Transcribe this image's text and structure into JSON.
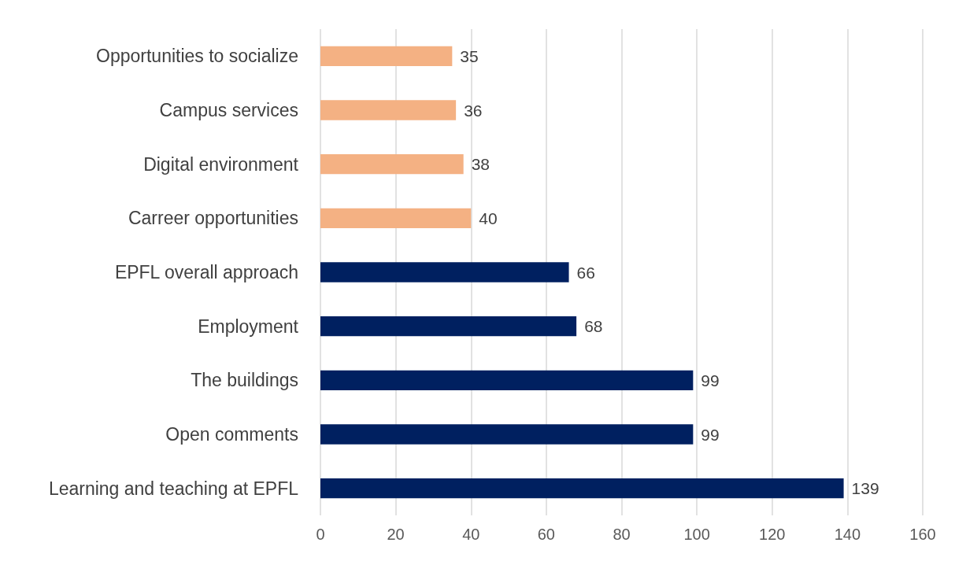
{
  "chart_data": {
    "type": "bar",
    "orientation": "horizontal",
    "categories": [
      "Opportunities to socialize",
      "Campus services",
      "Digital environment",
      "Carreer opportunities",
      "EPFL overall approach",
      "Employment",
      "The buildings",
      "Open comments",
      "Learning and teaching at EPFL"
    ],
    "values": [
      35,
      36,
      38,
      40,
      66,
      68,
      99,
      99,
      139
    ],
    "colors": [
      "#f4b183",
      "#f4b183",
      "#f4b183",
      "#f4b183",
      "#002060",
      "#002060",
      "#002060",
      "#002060",
      "#002060"
    ],
    "xlim": [
      0,
      160
    ],
    "xticks": [
      0,
      20,
      40,
      60,
      80,
      100,
      120,
      140,
      160
    ],
    "grid": "x",
    "data_labels": true
  }
}
